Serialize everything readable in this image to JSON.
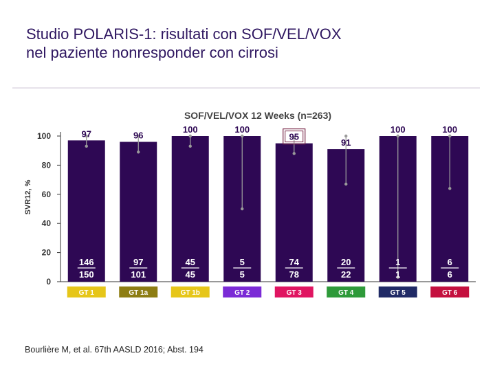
{
  "slide": {
    "title_line1": "Studio POLARIS-1: risultati con SOF/VEL/VOX",
    "title_line2": "nel paziente nonresponder con cirrosi",
    "citation": "Bourlière M, et al. 67th AASLD 2016; Abst. 194"
  },
  "chart_data": {
    "type": "bar",
    "title": "SOF/VEL/VOX 12 Weeks (n=263)",
    "ylabel": "SVR12, %",
    "xlabel": "",
    "ylim": [
      0,
      100
    ],
    "yticks": [
      0,
      20,
      40,
      60,
      80,
      100
    ],
    "categories": [
      "GT 1",
      "GT 1a",
      "GT 1b",
      "GT 2",
      "GT 3",
      "GT 4",
      "GT 5",
      "GT 6"
    ],
    "values": [
      97,
      96,
      100,
      100,
      95,
      91,
      100,
      100
    ],
    "value_labels": [
      "97",
      "96",
      "100",
      "100",
      "95",
      "91",
      "100",
      "100"
    ],
    "ci_lower": [
      93,
      89,
      93,
      50,
      88,
      67,
      3,
      64
    ],
    "ci_upper": [
      100,
      100,
      100,
      100,
      99,
      100,
      100,
      100
    ],
    "numerators": [
      "146",
      "97",
      "45",
      "5",
      "74",
      "20",
      "1",
      "6"
    ],
    "denominators": [
      "150",
      "101",
      "45",
      "5",
      "78",
      "22",
      "1",
      "6"
    ],
    "highlighted_category": "GT 3",
    "bar_color": "#2e0854",
    "category_colors": [
      "#e6c619",
      "#8d7d13",
      "#e6c619",
      "#7b2bd6",
      "#e01561",
      "#2e9a3a",
      "#202a66",
      "#c4103e"
    ]
  }
}
